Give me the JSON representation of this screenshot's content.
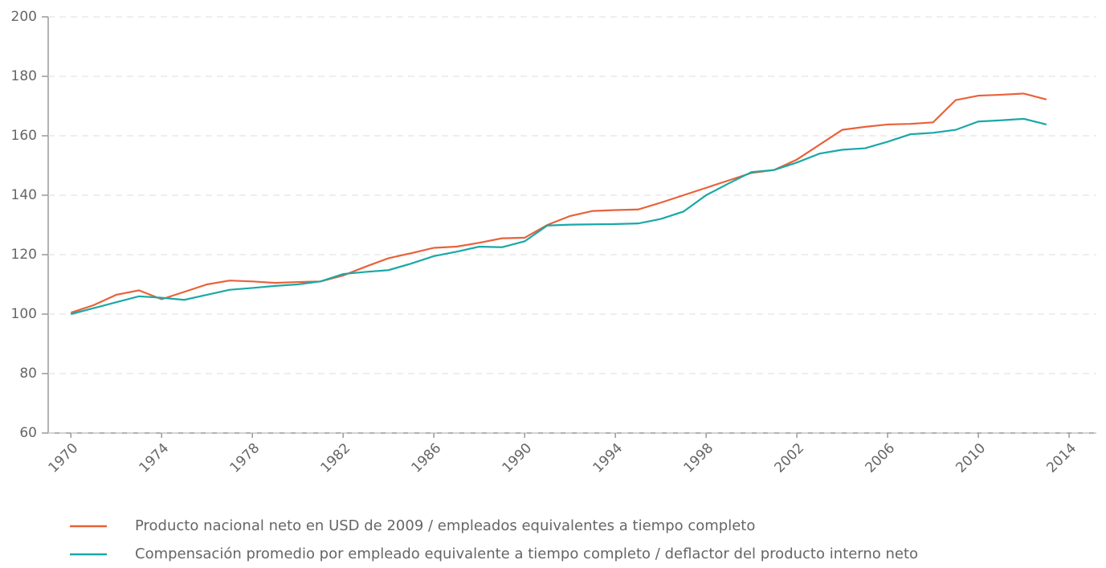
{
  "chart_data": {
    "type": "line",
    "x": [
      1970,
      1971,
      1972,
      1973,
      1974,
      1975,
      1976,
      1977,
      1978,
      1979,
      1980,
      1981,
      1982,
      1983,
      1984,
      1985,
      1986,
      1987,
      1988,
      1989,
      1990,
      1991,
      1992,
      1993,
      1994,
      1995,
      1996,
      1997,
      1998,
      1999,
      2000,
      2001,
      2002,
      2003,
      2004,
      2005,
      2006,
      2007,
      2008,
      2009,
      2010,
      2011,
      2012,
      2013
    ],
    "series": [
      {
        "name": "Producto nacional neto en USD de 2009 / empleados equivalentes a tiempo completo",
        "color": "#e8623a",
        "values": [
          100.5,
          103,
          106.5,
          108,
          105,
          107.5,
          110,
          111.3,
          111,
          110.5,
          110.8,
          111,
          113,
          116,
          118.8,
          120.5,
          122.3,
          122.7,
          124,
          125.5,
          125.7,
          130,
          133,
          134.7,
          135,
          135.2,
          137.5,
          140,
          142.5,
          145,
          147.5,
          148.5,
          152,
          157,
          162,
          163,
          163.8,
          164,
          164.5,
          172,
          173.5,
          173.8,
          174.2,
          172.2
        ]
      },
      {
        "name": "Compensación promedio por empleado equivalente a tiempo completo / deflactor del producto interno neto",
        "color": "#1aa8a8",
        "values": [
          100,
          102,
          104,
          106,
          105.5,
          104.8,
          106.5,
          108.2,
          108.8,
          109.5,
          110,
          111,
          113.5,
          114.2,
          114.8,
          117,
          119.5,
          121,
          122.7,
          122.5,
          124.5,
          129.8,
          130.1,
          130.2,
          130.3,
          130.5,
          132,
          134.5,
          140,
          144,
          147.8,
          148.5,
          151,
          154,
          155.3,
          155.8,
          158,
          160.5,
          161,
          162,
          164.8,
          165.2,
          165.7,
          163.8
        ]
      }
    ],
    "xlim": [
      1969,
      2015.2
    ],
    "xticks": [
      1970,
      1974,
      1978,
      1982,
      1986,
      1990,
      1994,
      1998,
      2002,
      2006,
      2010,
      2014
    ],
    "ylim": [
      60,
      200
    ],
    "yticks": [
      60,
      80,
      100,
      120,
      140,
      160,
      180,
      200
    ],
    "grid": true
  }
}
